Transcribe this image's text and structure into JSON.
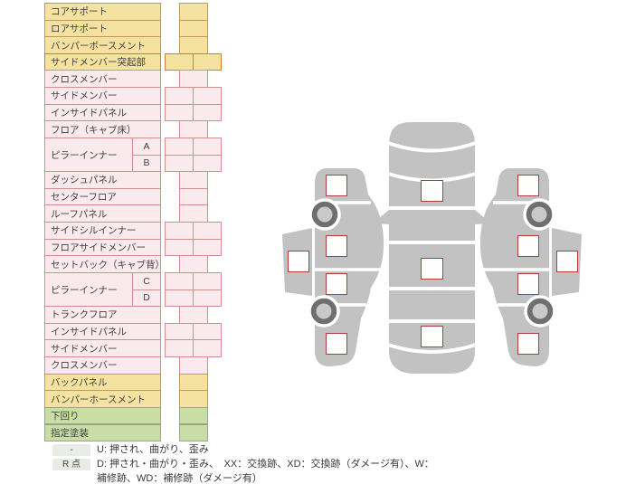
{
  "table": {
    "rows": [
      {
        "label": "コアサポート",
        "color": "yellow",
        "cells": 1
      },
      {
        "label": "ロアサポート",
        "color": "yellow",
        "cells": 1
      },
      {
        "label": "バンパーボースメント",
        "color": "yellow",
        "cells": 1
      },
      {
        "label": "サイドメンバー突起部",
        "color": "yellow",
        "accent": true,
        "cells": 2
      },
      {
        "label": "クロスメンバー",
        "color": "pink",
        "cells": 1
      },
      {
        "label": "サイドメンバー",
        "color": "pink",
        "cells": 2
      },
      {
        "label": "インサイドパネル",
        "color": "pink",
        "cells": 2
      },
      {
        "label": "フロア（キャブ床）",
        "color": "pink",
        "cells": 1
      },
      {
        "label": "ピラーインナー",
        "sub": "A",
        "rowspan": 2,
        "color": "pink",
        "cells": 2
      },
      {
        "label": "",
        "sub": "B",
        "merged": true,
        "color": "pink",
        "cells": 2
      },
      {
        "label": "ダッシュパネル",
        "color": "pink",
        "cells": 1
      },
      {
        "label": "センターフロア",
        "color": "pink",
        "cells": 1
      },
      {
        "label": "ルーフパネル",
        "color": "pink",
        "cells": 1
      },
      {
        "label": "サイドシルインナー",
        "color": "pink",
        "cells": 2
      },
      {
        "label": "フロアサイドメンバー",
        "color": "pink",
        "cells": 2
      },
      {
        "label": "セットバック（キャブ背）",
        "color": "pink",
        "cells": 1
      },
      {
        "label": "ピラーインナー",
        "sub": "C",
        "rowspan": 2,
        "color": "pink",
        "cells": 2
      },
      {
        "label": "",
        "sub": "D",
        "merged": true,
        "color": "pink",
        "cells": 2
      },
      {
        "label": "トランクフロア",
        "color": "pink",
        "cells": 1
      },
      {
        "label": "インサイドパネル",
        "color": "pink",
        "cells": 2
      },
      {
        "label": "サイドメンバー",
        "color": "pink",
        "cells": 2
      },
      {
        "label": "クロスメンバー",
        "color": "pink",
        "cells": 1
      },
      {
        "label": "バックパネル",
        "color": "yellow",
        "cells": 1
      },
      {
        "label": "バンパーホースメント",
        "color": "yellow",
        "cells": 1
      },
      {
        "label": "下回り",
        "color": "green",
        "cells": 1
      },
      {
        "label": "指定塗装",
        "color": "green",
        "cells": 1
      }
    ]
  },
  "legend": {
    "items": [
      {
        "badge": "-",
        "text": "U: 押され、曲がり、歪み"
      },
      {
        "badge": "R 点",
        "text": "D: 押され・曲がり・歪み、　XX：交換跡、XD：交換跡（ダメージ有）、W：補修跡、WD：補修跡（ダメージ有）"
      }
    ]
  },
  "diagram": {
    "views": [
      "left-side-view",
      "top-view",
      "right-side-view"
    ],
    "input_boxes": [
      "top-view-front-box",
      "top-view-center-box",
      "top-view-rear-box",
      "left-front-fender-box",
      "left-front-door-box",
      "left-rear-door-box",
      "left-rear-fender-box",
      "left-sill-box",
      "right-front-fender-box",
      "right-front-door-box",
      "right-rear-door-box",
      "right-rear-fender-box",
      "right-sill-box"
    ]
  },
  "colors": {
    "yellow_bg": "#f6e2a0",
    "yellow_border": "#c09a5d",
    "pink_bg": "#fbeaed",
    "pink_border": "#d18e8e",
    "green_bg": "#c9dda6",
    "green_border": "#9aa586",
    "accent_border": "#c5803b",
    "car_body_gray": "#c3c2c2",
    "wheel_ring": "#6f6f6f",
    "wheel_hub": "#c9c9c9",
    "diagram_box_border": "#b23c3c",
    "badge_bg": "#e9ece4"
  }
}
